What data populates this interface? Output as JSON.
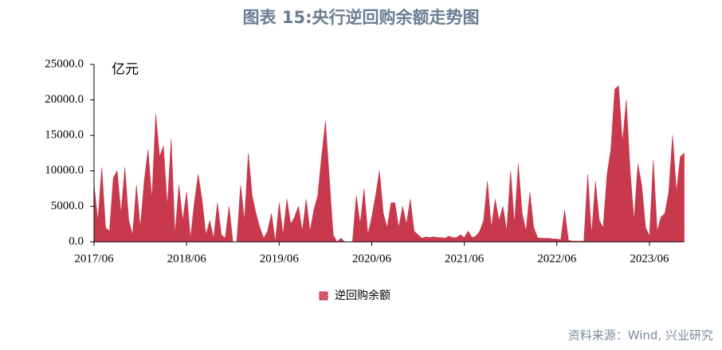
{
  "chart_data": {
    "type": "area",
    "title": "图表 15:央行逆回购余额走势图",
    "unit": "亿元",
    "source": "资料来源：Wind, 兴业研究",
    "categories": [
      "2017/06",
      null,
      null,
      null,
      null,
      null,
      null,
      null,
      null,
      null,
      null,
      null,
      null,
      null,
      null,
      null,
      null,
      null,
      null,
      null,
      null,
      null,
      null,
      null,
      "2018/06",
      null,
      null,
      null,
      null,
      null,
      null,
      null,
      null,
      null,
      null,
      null,
      null,
      null,
      null,
      null,
      null,
      null,
      null,
      null,
      null,
      null,
      null,
      null,
      "2019/06",
      null,
      null,
      null,
      null,
      null,
      null,
      null,
      null,
      null,
      null,
      null,
      null,
      null,
      null,
      null,
      null,
      null,
      null,
      null,
      null,
      null,
      null,
      null,
      "2020/06",
      null,
      null,
      null,
      null,
      null,
      null,
      null,
      null,
      null,
      null,
      null,
      null,
      null,
      null,
      null,
      null,
      null,
      null,
      null,
      null,
      null,
      null,
      null,
      "2021/06",
      null,
      null,
      null,
      null,
      null,
      null,
      null,
      null,
      null,
      null,
      null,
      null,
      null,
      null,
      null,
      null,
      null,
      null,
      null,
      null,
      null,
      null,
      null,
      "2022/06",
      null,
      null,
      null,
      null,
      null,
      null,
      null,
      null,
      null,
      null,
      null,
      null,
      null,
      null,
      null,
      null,
      null,
      null,
      null,
      null,
      null,
      null,
      null,
      "2023/06",
      null,
      null,
      null,
      null,
      null,
      null,
      null,
      null,
      null
    ],
    "series": [
      {
        "name": "逆回购余额",
        "color": "#c9394d",
        "values": [
          8000,
          3000,
          10500,
          2000,
          1500,
          9000,
          10000,
          4000,
          10500,
          3000,
          1000,
          8000,
          2000,
          8500,
          13000,
          6000,
          18000,
          12000,
          13500,
          5000,
          14500,
          1000,
          8000,
          3000,
          7000,
          500,
          5500,
          9500,
          6000,
          1000,
          3000,
          500,
          5500,
          1000,
          500,
          5000,
          0,
          0,
          8000,
          3000,
          12500,
          6500,
          4000,
          2000,
          500,
          1500,
          4000,
          0,
          5500,
          1000,
          6000,
          2500,
          3500,
          5000,
          1500,
          6000,
          1500,
          4500,
          6500,
          12000,
          17000,
          9000,
          1000,
          0,
          500,
          0,
          0,
          0,
          6500,
          2500,
          7500,
          1000,
          3500,
          6500,
          10000,
          4000,
          2000,
          5500,
          5500,
          2000,
          5000,
          2500,
          6000,
          1500,
          1000,
          500,
          700,
          600,
          700,
          600,
          600,
          500,
          800,
          600,
          600,
          1000,
          600,
          1500,
          600,
          800,
          1500,
          3000,
          8500,
          2000,
          6000,
          3000,
          5000,
          1500,
          10000,
          2500,
          11000,
          4000,
          1500,
          7000,
          2000,
          600,
          500,
          500,
          500,
          400,
          400,
          300,
          4500,
          200,
          100,
          100,
          100,
          100,
          9500,
          1000,
          8500,
          3000,
          2000,
          9500,
          13000,
          21500,
          22000,
          14000,
          20000,
          10000,
          3000,
          11000,
          8000,
          2000,
          800,
          11500,
          1500,
          3500,
          4000,
          7000,
          15000,
          7000,
          12000,
          12500
        ]
      }
    ],
    "ylim": [
      0,
      25000
    ],
    "yticks": [
      {
        "value": 0,
        "label": "0.0"
      },
      {
        "value": 5000,
        "label": "5000.0"
      },
      {
        "value": 10000,
        "label": "10000.0"
      },
      {
        "value": 15000,
        "label": "15000.0"
      },
      {
        "value": 20000,
        "label": "20000.0"
      },
      {
        "value": 25000,
        "label": "25000.0"
      }
    ],
    "grid": false
  }
}
